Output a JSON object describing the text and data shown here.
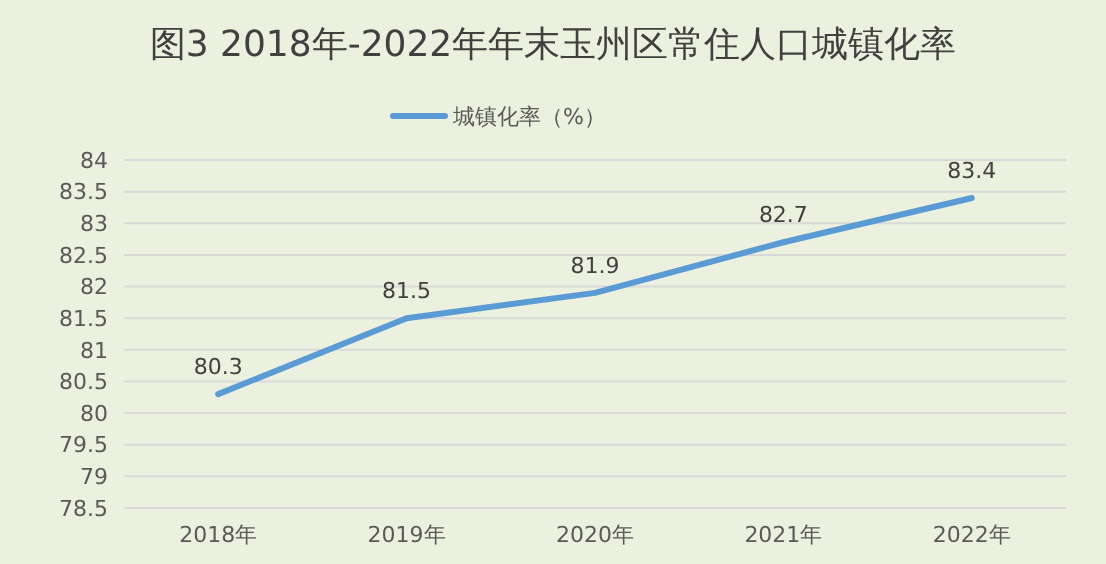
{
  "chart_data": {
    "type": "line",
    "title": "图3  2018年-2022年年末玉州区常住人口城镇化率",
    "categories": [
      "2018年",
      "2019年",
      "2020年",
      "2021年",
      "2022年"
    ],
    "series": [
      {
        "name": "城镇化率（%）",
        "color": "#5b9bd5",
        "values": [
          80.3,
          81.5,
          81.9,
          82.7,
          83.4
        ]
      }
    ],
    "ylim": [
      78.5,
      84
    ],
    "yticks": [
      78.5,
      79,
      79.5,
      80,
      80.5,
      81,
      81.5,
      82,
      82.5,
      83,
      83.5,
      84
    ],
    "grid": "y",
    "legend": "top",
    "data_labels": true,
    "marker": "none"
  }
}
